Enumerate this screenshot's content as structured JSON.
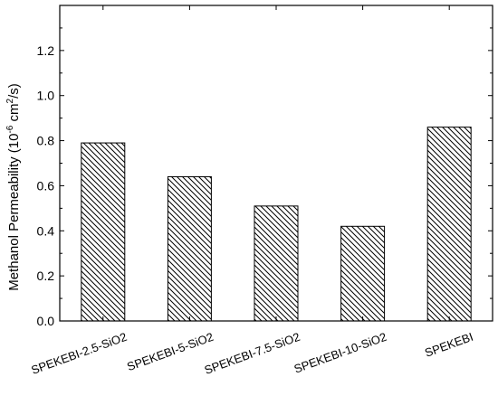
{
  "chart_data": {
    "type": "bar",
    "categories": [
      "SPEKEBI-2.5-SiO2",
      "SPEKEBI-5-SiO2",
      "SPEKEBI-7.5-SiO2",
      "SPEKEBI-10-SiO2",
      "SPEKEBI"
    ],
    "values": [
      0.79,
      0.64,
      0.51,
      0.42,
      0.86
    ],
    "ylabel": {
      "prefix": "Methanol Permeability (10",
      "exponent": "-6",
      "middle": " cm",
      "unit_exponent": "2",
      "suffix": "/s)"
    },
    "ylim": [
      0,
      1.4
    ],
    "yticks": [
      "0.0",
      "0.2",
      "0.4",
      "0.6",
      "0.8",
      "1.0",
      "1.2"
    ],
    "bar_pattern": "diagonal-hatch",
    "grid": false,
    "legend": "none",
    "colors": {
      "stroke": "#000000",
      "fill": "#ffffff"
    }
  }
}
